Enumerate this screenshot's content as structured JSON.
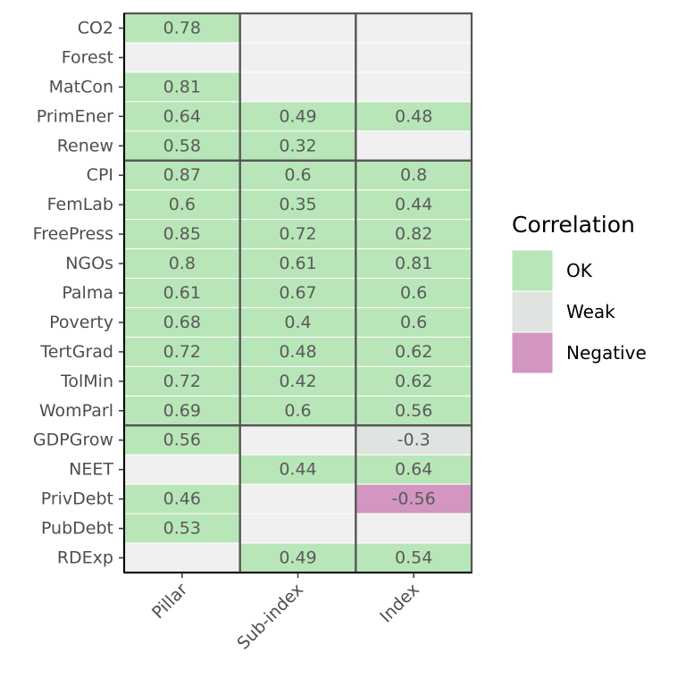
{
  "chart_data": {
    "type": "heatmap",
    "title": "",
    "xlabel": "",
    "ylabel": "",
    "columns": [
      "Pillar",
      "Sub-index",
      "Index"
    ],
    "rows": [
      "CO2",
      "Forest",
      "MatCon",
      "PrimEner",
      "Renew",
      "CPI",
      "FemLab",
      "FreePress",
      "NGOs",
      "Palma",
      "Poverty",
      "TertGrad",
      "TolMin",
      "WomParl",
      "GDPGrow",
      "NEET",
      "PrivDebt",
      "PubDebt",
      "RDExp"
    ],
    "values": [
      [
        "0.78",
        "",
        ""
      ],
      [
        "",
        "",
        ""
      ],
      [
        "0.81",
        "",
        ""
      ],
      [
        "0.64",
        "0.49",
        "0.48"
      ],
      [
        "0.58",
        "0.32",
        ""
      ],
      [
        "0.87",
        "0.6",
        "0.8"
      ],
      [
        "0.6",
        "0.35",
        "0.44"
      ],
      [
        "0.85",
        "0.72",
        "0.82"
      ],
      [
        "0.8",
        "0.61",
        "0.81"
      ],
      [
        "0.61",
        "0.67",
        "0.6"
      ],
      [
        "0.68",
        "0.4",
        "0.6"
      ],
      [
        "0.72",
        "0.48",
        "0.62"
      ],
      [
        "0.72",
        "0.42",
        "0.62"
      ],
      [
        "0.69",
        "0.6",
        "0.56"
      ],
      [
        "0.56",
        "",
        "-0.3"
      ],
      [
        "",
        "0.44",
        "0.64"
      ],
      [
        "0.46",
        "",
        "-0.56"
      ],
      [
        "0.53",
        "",
        ""
      ],
      [
        "",
        "0.49",
        "0.54"
      ]
    ],
    "categories": [
      [
        "OK",
        "empty",
        "empty"
      ],
      [
        "empty",
        "empty",
        "empty"
      ],
      [
        "OK",
        "empty",
        "empty"
      ],
      [
        "OK",
        "OK",
        "OK"
      ],
      [
        "OK",
        "OK",
        "empty"
      ],
      [
        "OK",
        "OK",
        "OK"
      ],
      [
        "OK",
        "OK",
        "OK"
      ],
      [
        "OK",
        "OK",
        "OK"
      ],
      [
        "OK",
        "OK",
        "OK"
      ],
      [
        "OK",
        "OK",
        "OK"
      ],
      [
        "OK",
        "OK",
        "OK"
      ],
      [
        "OK",
        "OK",
        "OK"
      ],
      [
        "OK",
        "OK",
        "OK"
      ],
      [
        "OK",
        "OK",
        "OK"
      ],
      [
        "OK",
        "empty",
        "Weak"
      ],
      [
        "empty",
        "OK",
        "OK"
      ],
      [
        "OK",
        "empty",
        "Negative"
      ],
      [
        "OK",
        "empty",
        "empty"
      ],
      [
        "empty",
        "OK",
        "OK"
      ]
    ],
    "group_boundaries_after_row": [
      4,
      13
    ],
    "colors": {
      "OK": "#b8e6b8",
      "Weak": "#e0e4e0",
      "Negative": "#d296c0",
      "empty": "#f0f0f0",
      "outline": "#555555"
    },
    "legend": {
      "title": "Correlation",
      "position": "right",
      "items": [
        {
          "label": "OK",
          "color": "#b8e6b8"
        },
        {
          "label": "Weak",
          "color": "#e0e4e0"
        },
        {
          "label": "Negative",
          "color": "#d296c0"
        }
      ]
    }
  }
}
